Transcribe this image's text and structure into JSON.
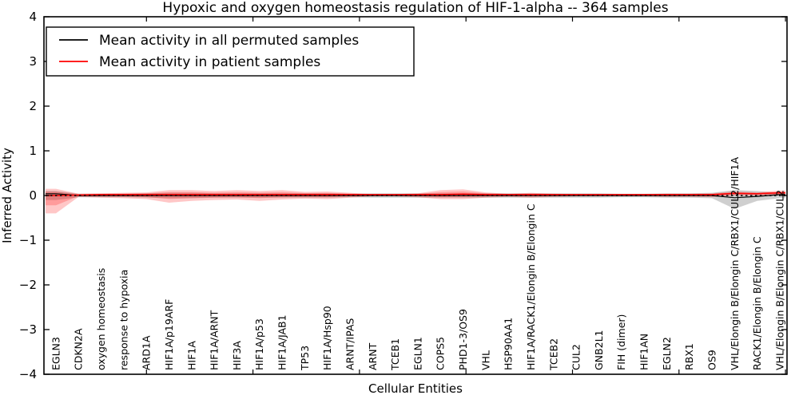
{
  "figure": {
    "background": "#ffffff",
    "frame_color": "#000000"
  },
  "chart_data": {
    "type": "line",
    "title": "Hypoxic and oxygen homeostasis regulation of HIF-1-alpha -- 364 samples",
    "xlabel": "Cellular Entities",
    "ylabel": "Inferred Activity",
    "ylim": [
      -4,
      4
    ],
    "yticks": [
      "4",
      "3",
      "2",
      "1",
      "0",
      "−1",
      "−2",
      "−3",
      "−4"
    ],
    "ytick_values": [
      4,
      3,
      2,
      1,
      0,
      -1,
      -2,
      -3,
      -4
    ],
    "grid": false,
    "legend_position": "upper left",
    "zero_line": {
      "y": 0,
      "color": "#000000",
      "style": "dotted"
    },
    "categories": [
      "EGLN3",
      "CDKN2A",
      "oxygen homeostasis",
      "response to hypoxia",
      "ARD1A",
      "HIF1A/p19ARF",
      "HIF1A",
      "HIF1A/ARNT",
      "HIF3A",
      "HIF1A/p53",
      "HIF1A/JAB1",
      "TP53",
      "HIF1A/Hsp90",
      "ARNT/IPAS",
      "ARNT",
      "TCEB1",
      "EGLN1",
      "COPS5",
      "PHD1-3/OS9",
      "VHL",
      "HSP90AA1",
      "HIF1A/RACK1/Elongin B/Elongin C",
      "TCEB2",
      "CUL2",
      "GNB2L1",
      "FIH (dimer)",
      "HIF1AN",
      "EGLN2",
      "RBX1",
      "OS9",
      "VHL/Elongin B/Elongin C/RBX1/CUL2/HIF1A",
      "RACK1/Elongin B/Elongin C",
      "VHL/Elongin B/Elongin C/RBX1/CUL2"
    ],
    "series": [
      {
        "name": "Mean activity in all permuted samples",
        "color": "#000000",
        "band_color": "#00000030",
        "line_style": "solid",
        "mean": [
          0.04,
          0,
          0,
          0,
          0,
          0,
          0,
          0,
          0,
          0,
          0,
          0,
          0,
          0,
          0,
          0,
          0,
          0,
          0,
          0,
          0,
          0,
          0,
          0,
          0,
          0,
          0,
          0,
          0,
          0,
          -0.05,
          -0.02,
          0.02
        ],
        "band_lo": [
          -0.1,
          -0.04,
          -0.04,
          -0.04,
          -0.05,
          -0.06,
          -0.06,
          -0.05,
          -0.05,
          -0.05,
          -0.05,
          -0.05,
          -0.05,
          -0.04,
          -0.05,
          -0.05,
          -0.05,
          -0.05,
          -0.05,
          -0.05,
          -0.05,
          -0.05,
          -0.05,
          -0.05,
          -0.05,
          -0.04,
          -0.04,
          -0.05,
          -0.05,
          -0.06,
          -0.3,
          -0.12,
          -0.06
        ],
        "band_hi": [
          0.1,
          0.04,
          0.04,
          0.04,
          0.05,
          0.06,
          0.06,
          0.05,
          0.05,
          0.05,
          0.05,
          0.05,
          0.05,
          0.04,
          0.05,
          0.05,
          0.05,
          0.05,
          0.05,
          0.05,
          0.05,
          0.05,
          0.05,
          0.05,
          0.05,
          0.04,
          0.04,
          0.05,
          0.05,
          0.06,
          0.12,
          0.1,
          0.06
        ]
      },
      {
        "name": "Mean activity in patient samples",
        "color": "#ff0000",
        "band_color": "#ff000038",
        "line_style": "solid",
        "mean": [
          0.0,
          0.01,
          0.02,
          0.02,
          0.02,
          0.02,
          0.02,
          0.02,
          0.02,
          0.02,
          0.02,
          0.02,
          0.02,
          0.02,
          0.02,
          0.02,
          0.02,
          0.02,
          0.03,
          0.02,
          0.02,
          0.02,
          0.02,
          0.02,
          0.02,
          0.02,
          0.02,
          0.02,
          0.02,
          0.02,
          0.05,
          0.04,
          0.06
        ],
        "band_lo": [
          -0.4,
          -0.03,
          -0.05,
          -0.06,
          -0.08,
          -0.16,
          -0.12,
          -0.1,
          -0.09,
          -0.12,
          -0.09,
          -0.07,
          -0.08,
          -0.05,
          -0.02,
          -0.02,
          -0.04,
          -0.08,
          -0.08,
          -0.05,
          -0.03,
          -0.05,
          -0.03,
          -0.02,
          -0.02,
          -0.02,
          -0.02,
          -0.03,
          -0.03,
          -0.04,
          0.0,
          0.0,
          0.01
        ],
        "band_hi": [
          0.15,
          0.04,
          0.05,
          0.06,
          0.07,
          0.12,
          0.12,
          0.1,
          0.12,
          0.1,
          0.12,
          0.08,
          0.09,
          0.06,
          0.03,
          0.03,
          0.05,
          0.12,
          0.14,
          0.07,
          0.04,
          0.06,
          0.04,
          0.03,
          0.03,
          0.03,
          0.03,
          0.04,
          0.04,
          0.05,
          0.09,
          0.07,
          0.11
        ]
      }
    ]
  }
}
